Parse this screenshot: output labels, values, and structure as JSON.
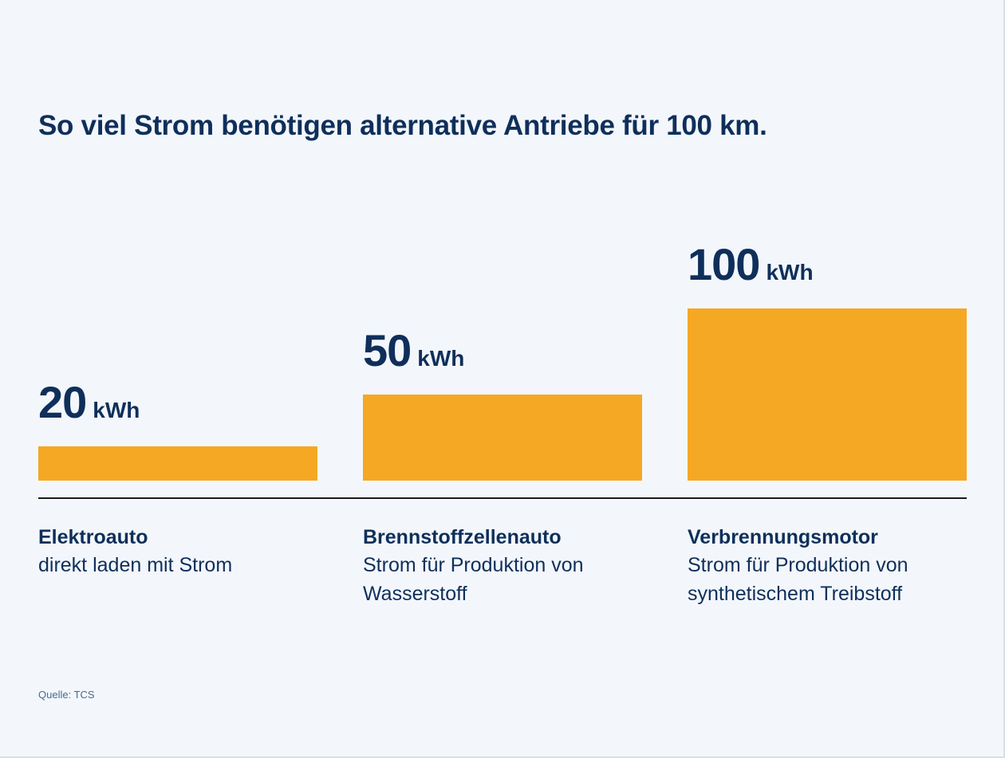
{
  "chart_data": {
    "type": "bar",
    "title": "So viel Strom benötigen alternative Antriebe für 100 km.",
    "categories": [
      "Elektroauto",
      "Brennstoffzellenauto",
      "Verbrennungsmotor"
    ],
    "descriptions": [
      "direkt laden mit Strom",
      "Strom für Produktion von Wasserstoff",
      "Strom für Produktion von synthetischem Treibstoff"
    ],
    "values": [
      20,
      50,
      100
    ],
    "unit": "kWh",
    "ylim": [
      0,
      100
    ],
    "xlabel": "",
    "ylabel": "",
    "grid": false,
    "bar_color": "#f5a823",
    "text_color": "#0f2f5a"
  },
  "source": "Quelle: TCS"
}
